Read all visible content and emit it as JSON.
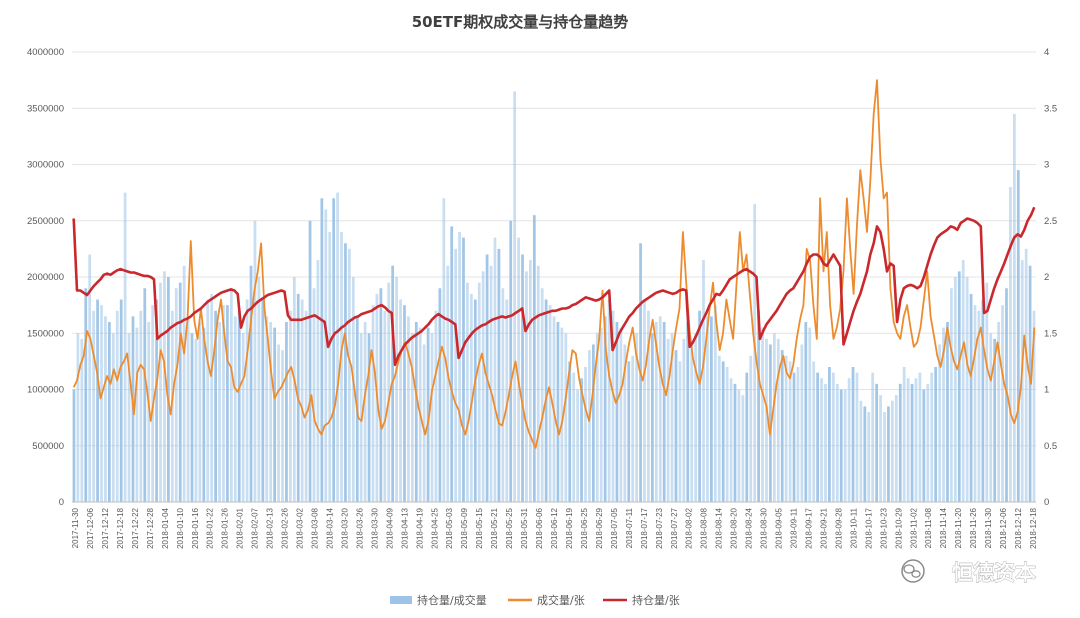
{
  "chart_data": {
    "type": "bar+line",
    "title": "50ETF期权成交量与持仓量趋势",
    "x_start": "2017-11-30",
    "x_end": "2018-12-18",
    "x_tick_labels": [
      "2017-11-30",
      "2017-12-06",
      "2017-12-12",
      "2017-12-18",
      "2017-12-22",
      "2017-12-28",
      "2018-01-04",
      "2018-01-10",
      "2018-01-16",
      "2018-01-22",
      "2018-01-26",
      "2018-02-01",
      "2018-02-07",
      "2018-02-13",
      "2018-02-26",
      "2018-03-02",
      "2018-03-08",
      "2018-03-14",
      "2018-03-20",
      "2018-03-26",
      "2018-03-30",
      "2018-04-09",
      "2018-04-13",
      "2018-04-19",
      "2018-04-25",
      "2018-05-03",
      "2018-05-09",
      "2018-05-15",
      "2018-05-21",
      "2018-05-25",
      "2018-05-31",
      "2018-06-06",
      "2018-06-12",
      "2018-06-19",
      "2018-06-25",
      "2018-06-29",
      "2018-07-05",
      "2018-07-11",
      "2018-07-17",
      "2018-07-23",
      "2018-07-27",
      "2018-08-02",
      "2018-08-08",
      "2018-08-14",
      "2018-08-20",
      "2018-08-24",
      "2018-08-30",
      "2018-09-05",
      "2018-09-11",
      "2018-09-17",
      "2018-09-21",
      "2018-09-28",
      "2018-10-11",
      "2018-10-17",
      "2018-10-23",
      "2018-10-29",
      "2018-11-02",
      "2018-11-08",
      "2018-11-14",
      "2018-11-20",
      "2018-11-26",
      "2018-11-30",
      "2018-12-06",
      "2018-12-12",
      "2018-12-18"
    ],
    "y_left": {
      "ticks": [
        "0",
        "500000",
        "1000000",
        "1500000",
        "2000000",
        "2500000",
        "3000000",
        "3500000",
        "4000000"
      ],
      "ylim": [
        0,
        4000000
      ]
    },
    "y_right": {
      "ticks": [
        "0",
        "0.5",
        "1",
        "1.5",
        "2",
        "2.5",
        "3",
        "3.5",
        "4"
      ],
      "ylim": [
        0,
        4
      ]
    },
    "series": [
      {
        "name": "持仓量/成交量",
        "type": "bar",
        "axis": "left",
        "color": "#9dc3e6",
        "values": [
          1000000,
          1500000,
          1450000,
          1900000,
          2200000,
          1700000,
          1800000,
          1750000,
          1650000,
          1600000,
          1500000,
          1700000,
          1800000,
          2750000,
          1500000,
          1650000,
          1550000,
          1700000,
          1900000,
          1600000,
          1750000,
          1800000,
          1950000,
          2050000,
          2000000,
          1700000,
          1900000,
          1950000,
          2100000,
          1650000,
          1500000,
          1450000,
          1600000,
          1550000,
          1800000,
          1850000,
          1700000,
          1600000,
          1750000,
          1750000,
          1900000,
          1650000,
          1700000,
          1500000,
          1800000,
          2100000,
          2500000,
          2000000,
          1800000,
          1650000,
          1600000,
          1550000,
          1400000,
          1350000,
          1600000,
          1700000,
          2000000,
          1850000,
          1800000,
          1700000,
          2500000,
          1900000,
          2150000,
          2700000,
          2600000,
          2400000,
          2700000,
          2750000,
          2400000,
          2300000,
          2250000,
          2000000,
          1650000,
          1500000,
          1600000,
          1500000,
          1750000,
          1850000,
          1900000,
          1700000,
          1950000,
          2100000,
          2000000,
          1800000,
          1750000,
          1650000,
          1500000,
          1600000,
          1550000,
          1400000,
          1550000,
          1500000,
          1700000,
          1900000,
          2700000,
          2100000,
          2450000,
          2250000,
          2400000,
          2350000,
          1950000,
          1850000,
          1800000,
          1950000,
          2050000,
          2200000,
          2100000,
          2350000,
          2250000,
          1900000,
          1800000,
          2500000,
          3650000,
          2350000,
          2200000,
          2050000,
          2150000,
          2550000,
          2100000,
          1900000,
          1800000,
          1750000,
          1650000,
          1600000,
          1550000,
          1500000,
          1250000,
          1150000,
          1000000,
          1100000,
          1200000,
          1350000,
          1400000,
          1500000,
          1550000,
          1650000,
          1800000,
          1700000,
          1600000,
          1550000,
          1400000,
          1250000,
          1300000,
          1500000,
          2300000,
          1800000,
          1700000,
          1500000,
          1600000,
          1650000,
          1600000,
          1450000,
          1500000,
          1350000,
          1250000,
          1450000,
          1600000,
          1400000,
          1500000,
          1700000,
          2150000,
          1650000,
          1650000,
          1750000,
          1300000,
          1250000,
          1200000,
          1100000,
          1050000,
          1000000,
          950000,
          1150000,
          1300000,
          2650000,
          1700000,
          1550000,
          1450000,
          1400000,
          1500000,
          1450000,
          1350000,
          1300000,
          1250000,
          1150000,
          1200000,
          1400000,
          1600000,
          1550000,
          1250000,
          1150000,
          1100000,
          1050000,
          1200000,
          1150000,
          1050000,
          1000000,
          1000000,
          1100000,
          1200000,
          1150000,
          900000,
          850000,
          800000,
          1150000,
          1050000,
          950000,
          800000,
          850000,
          900000,
          950000,
          1050000,
          1200000,
          1100000,
          1050000,
          1100000,
          1150000,
          1000000,
          1050000,
          1150000,
          1200000,
          1400000,
          1550000,
          1600000,
          1900000,
          2000000,
          2050000,
          2150000,
          2000000,
          1850000,
          1750000,
          1700000,
          1800000,
          1950000,
          1500000,
          1450000,
          1600000,
          1750000,
          1900000,
          2800000,
          3450000,
          2950000,
          2150000,
          2250000,
          2100000,
          1700000
        ],
        "visible_labels": []
      },
      {
        "name": "成交量/张",
        "type": "line",
        "axis": "right",
        "color": "#ed8c2f",
        "values": [
          1.02,
          1.08,
          1.22,
          1.3,
          1.52,
          1.45,
          1.3,
          1.15,
          0.92,
          1.02,
          1.12,
          1.05,
          1.18,
          1.08,
          1.2,
          1.25,
          1.32,
          1.05,
          0.78,
          1.15,
          1.22,
          1.18,
          0.98,
          0.72,
          0.92,
          1.1,
          1.35,
          1.25,
          0.95,
          0.78,
          1.05,
          1.22,
          1.5,
          1.32,
          1.62,
          2.32,
          1.62,
          1.45,
          1.72,
          1.45,
          1.25,
          1.12,
          1.35,
          1.62,
          1.8,
          1.5,
          1.25,
          1.2,
          1.02,
          0.98,
          1.05,
          1.12,
          1.35,
          1.62,
          1.88,
          2.05,
          2.3,
          1.72,
          1.45,
          1.15,
          0.92,
          0.98,
          1.02,
          1.08,
          1.15,
          1.2,
          1.08,
          0.92,
          0.85,
          0.75,
          0.82,
          0.95,
          0.72,
          0.65,
          0.6,
          0.68,
          0.7,
          0.75,
          0.85,
          1.05,
          1.35,
          1.5,
          1.3,
          1.2,
          0.98,
          0.75,
          0.72,
          0.95,
          1.12,
          1.35,
          1.15,
          0.82,
          0.65,
          0.72,
          0.88,
          1.05,
          1.12,
          1.25,
          1.35,
          1.42,
          1.32,
          1.2,
          1.02,
          0.85,
          0.72,
          0.6,
          0.72,
          0.98,
          1.12,
          1.25,
          1.38,
          1.28,
          1.1,
          0.98,
          0.88,
          0.82,
          0.68,
          0.6,
          0.72,
          0.9,
          1.08,
          1.22,
          1.32,
          1.15,
          1.05,
          0.95,
          0.82,
          0.7,
          0.68,
          0.8,
          0.95,
          1.12,
          1.25,
          1.05,
          0.88,
          0.72,
          0.62,
          0.55,
          0.48,
          0.62,
          0.75,
          0.9,
          1.02,
          0.88,
          0.72,
          0.6,
          0.72,
          0.92,
          1.15,
          1.35,
          1.32,
          1.1,
          0.95,
          0.82,
          0.72,
          0.95,
          1.22,
          1.45,
          1.88,
          1.35,
          1.12,
          0.98,
          0.88,
          0.95,
          1.05,
          1.25,
          1.42,
          1.55,
          1.32,
          1.18,
          1.08,
          1.22,
          1.45,
          1.62,
          1.4,
          1.2,
          1.05,
          0.95,
          1.12,
          1.35,
          1.55,
          1.72,
          2.4,
          1.95,
          1.52,
          1.28,
          1.15,
          1.05,
          1.2,
          1.45,
          1.72,
          1.95,
          1.6,
          1.35,
          1.5,
          1.8,
          1.62,
          1.45,
          1.92,
          2.4,
          2.05,
          2.2,
          1.85,
          1.5,
          1.25,
          1.05,
          0.95,
          0.85,
          0.6,
          0.82,
          1.05,
          1.2,
          1.3,
          1.15,
          1.1,
          1.22,
          1.45,
          1.62,
          1.75,
          2.25,
          2.15,
          1.75,
          1.45,
          2.7,
          2.05,
          2.4,
          1.75,
          1.45,
          1.55,
          1.72,
          2.05,
          2.7,
          2.25,
          1.85,
          2.45,
          2.95,
          2.7,
          2.4,
          2.85,
          3.45,
          3.75,
          3.05,
          2.7,
          2.75,
          1.9,
          1.6,
          1.5,
          1.45,
          1.65,
          1.75,
          1.55,
          1.38,
          1.42,
          1.55,
          1.8,
          2.05,
          1.65,
          1.48,
          1.3,
          1.2,
          1.35,
          1.55,
          1.38,
          1.25,
          1.18,
          1.3,
          1.42,
          1.22,
          1.12,
          1.28,
          1.45,
          1.55,
          1.35,
          1.18,
          1.08,
          1.25,
          1.42,
          1.22,
          1.05,
          0.95,
          0.78,
          0.7,
          0.8,
          1.02,
          1.48,
          1.22,
          1.05,
          1.55
        ]
      },
      {
        "name": "持仓量/张",
        "type": "line",
        "axis": "right",
        "color": "#c9282d",
        "values": [
          2.52,
          1.88,
          1.88,
          1.86,
          1.84,
          1.88,
          1.92,
          1.95,
          1.98,
          2.02,
          2.03,
          2.02,
          2.04,
          2.06,
          2.07,
          2.06,
          2.05,
          2.04,
          2.04,
          2.03,
          2.02,
          2.01,
          2.01,
          2.0,
          1.98,
          1.45,
          1.48,
          1.5,
          1.52,
          1.55,
          1.57,
          1.59,
          1.6,
          1.62,
          1.63,
          1.65,
          1.68,
          1.7,
          1.72,
          1.75,
          1.78,
          1.8,
          1.82,
          1.84,
          1.86,
          1.87,
          1.88,
          1.89,
          1.88,
          1.85,
          1.55,
          1.65,
          1.7,
          1.72,
          1.75,
          1.78,
          1.8,
          1.82,
          1.84,
          1.85,
          1.86,
          1.87,
          1.88,
          1.87,
          1.66,
          1.62,
          1.62,
          1.62,
          1.62,
          1.63,
          1.64,
          1.65,
          1.66,
          1.64,
          1.62,
          1.6,
          1.38,
          1.45,
          1.5,
          1.52,
          1.55,
          1.57,
          1.6,
          1.62,
          1.64,
          1.65,
          1.67,
          1.68,
          1.69,
          1.7,
          1.72,
          1.74,
          1.75,
          1.73,
          1.7,
          1.68,
          1.22,
          1.3,
          1.35,
          1.4,
          1.43,
          1.46,
          1.48,
          1.5,
          1.52,
          1.55,
          1.58,
          1.62,
          1.65,
          1.67,
          1.65,
          1.63,
          1.62,
          1.6,
          1.58,
          1.28,
          1.35,
          1.42,
          1.46,
          1.5,
          1.53,
          1.55,
          1.57,
          1.58,
          1.6,
          1.62,
          1.63,
          1.64,
          1.65,
          1.64,
          1.65,
          1.66,
          1.68,
          1.7,
          1.72,
          1.52,
          1.58,
          1.62,
          1.64,
          1.66,
          1.67,
          1.68,
          1.69,
          1.7,
          1.7,
          1.71,
          1.72,
          1.72,
          1.73,
          1.75,
          1.76,
          1.78,
          1.8,
          1.82,
          1.81,
          1.8,
          1.79,
          1.8,
          1.82,
          1.85,
          1.88,
          1.35,
          1.42,
          1.5,
          1.55,
          1.6,
          1.65,
          1.68,
          1.72,
          1.75,
          1.78,
          1.8,
          1.82,
          1.84,
          1.86,
          1.87,
          1.88,
          1.87,
          1.86,
          1.85,
          1.86,
          1.88,
          1.89,
          1.88,
          1.38,
          1.42,
          1.48,
          1.55,
          1.62,
          1.68,
          1.75,
          1.8,
          1.85,
          1.84,
          1.88,
          1.93,
          1.98,
          2.0,
          2.02,
          2.04,
          2.06,
          2.07,
          2.05,
          2.03,
          2.0,
          1.45,
          1.52,
          1.58,
          1.62,
          1.66,
          1.7,
          1.75,
          1.8,
          1.85,
          1.88,
          1.9,
          1.95,
          2.0,
          2.05,
          2.12,
          2.18,
          2.2,
          2.2,
          2.18,
          2.12,
          2.1,
          2.15,
          2.2,
          2.15,
          2.1,
          1.4,
          1.5,
          1.6,
          1.7,
          1.78,
          1.85,
          1.95,
          2.05,
          2.2,
          2.3,
          2.45,
          2.4,
          2.25,
          2.05,
          2.12,
          2.1,
          1.6,
          1.8,
          1.9,
          1.92,
          1.93,
          1.92,
          1.9,
          1.92,
          2.0,
          2.1,
          2.2,
          2.28,
          2.35,
          2.38,
          2.4,
          2.42,
          2.45,
          2.44,
          2.42,
          2.48,
          2.5,
          2.52,
          2.51,
          2.5,
          2.48,
          2.45,
          1.68,
          1.7,
          1.8,
          1.9,
          1.98,
          2.05,
          2.12,
          2.2,
          2.28,
          2.35,
          2.38,
          2.36,
          2.42,
          2.5,
          2.55,
          2.62
        ]
      }
    ],
    "legend_position": "bottom",
    "grid": "horizontal"
  },
  "watermark": {
    "text": "恒德资本",
    "icon": "wechat-icon"
  }
}
